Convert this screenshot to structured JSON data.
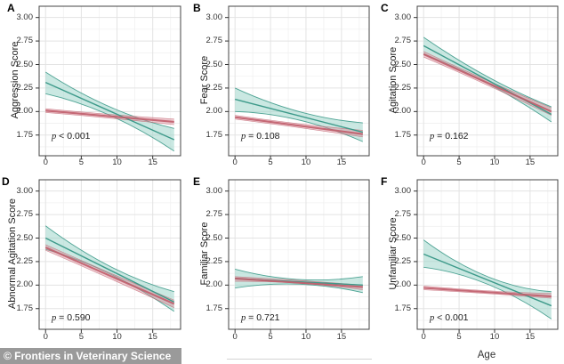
{
  "figure": {
    "credit_banner": "© Frontiers in Veterinary Science",
    "x_axis_title": "Age"
  },
  "colors": {
    "teal_line": "#3d9a8a",
    "teal_band": "#9fd6cb",
    "red_line": "#bf5b69",
    "red_band": "#d98c98",
    "grid_major": "#e3e3e3",
    "grid_minor": "#f1f1f1",
    "panel_border": "#454545",
    "tick": "#333333",
    "banner_bg": "#9a9a9a",
    "banner_text": "#ffffff"
  },
  "axes": {
    "y_tick_labels": [
      "3.00",
      "2.75",
      "2.50",
      "2.25",
      "2.00",
      "1.75"
    ],
    "y_tick_values": [
      3.0,
      2.75,
      2.5,
      2.25,
      2.0,
      1.75
    ],
    "x_tick_labels": [
      "0",
      "5",
      "10",
      "15"
    ],
    "x_tick_values": [
      0,
      5,
      10,
      15
    ],
    "x_minor_values": [
      2.5,
      7.5,
      12.5,
      17.5
    ],
    "y_minor_values": [
      1.625,
      1.875,
      2.125,
      2.375,
      2.625,
      2.875
    ],
    "x_domain": [
      -0.9,
      18.9
    ],
    "y_domain": [
      1.53,
      3.12
    ]
  },
  "chart_data": [
    {
      "type": "line",
      "panel": "A",
      "ylabel": "Aggression Score",
      "p_value": "p < 0.001",
      "x": [
        0,
        9,
        18
      ],
      "series": [
        {
          "name": "teal_group",
          "line": [
            2.31,
            1.7
          ],
          "upper": [
            2.42,
            2.05,
            1.82
          ],
          "lower": [
            2.19,
            1.96,
            1.58
          ]
        },
        {
          "name": "red_group",
          "line": [
            2.01,
            1.89
          ],
          "upper": [
            2.03,
            1.97,
            1.92
          ],
          "lower": [
            1.99,
            1.93,
            1.86
          ]
        }
      ]
    },
    {
      "type": "line",
      "panel": "B",
      "ylabel": "Fear Score",
      "p_value": "p = 0.108",
      "x": [
        0,
        9,
        18
      ],
      "series": [
        {
          "name": "teal_group",
          "line": [
            2.13,
            1.78
          ],
          "upper": [
            2.25,
            2.0,
            1.88
          ],
          "lower": [
            2.0,
            1.91,
            1.68
          ]
        },
        {
          "name": "red_group",
          "line": [
            1.94,
            1.76
          ],
          "upper": [
            1.96,
            1.87,
            1.8
          ],
          "lower": [
            1.92,
            1.83,
            1.73
          ]
        }
      ]
    },
    {
      "type": "line",
      "panel": "C",
      "ylabel": "Agitation Score",
      "p_value": "p = 0.162",
      "x": [
        0,
        9,
        18
      ],
      "series": [
        {
          "name": "teal_group",
          "line": [
            2.7,
            1.97
          ],
          "upper": [
            2.79,
            2.37,
            2.05
          ],
          "lower": [
            2.61,
            2.3,
            1.89
          ]
        },
        {
          "name": "red_group",
          "line": [
            2.61,
            2.0
          ],
          "upper": [
            2.64,
            2.33,
            2.04
          ],
          "lower": [
            2.58,
            2.28,
            1.96
          ]
        }
      ]
    },
    {
      "type": "line",
      "panel": "D",
      "ylabel": "Abnormal Agitation Score",
      "p_value": "p = 0.590",
      "x": [
        0,
        9,
        18
      ],
      "series": [
        {
          "name": "teal_group",
          "line": [
            2.5,
            1.82
          ],
          "upper": [
            2.63,
            2.2,
            1.93
          ],
          "lower": [
            2.38,
            2.12,
            1.72
          ]
        },
        {
          "name": "red_group",
          "line": [
            2.4,
            1.8
          ],
          "upper": [
            2.43,
            2.13,
            1.84
          ],
          "lower": [
            2.37,
            2.07,
            1.76
          ]
        }
      ]
    },
    {
      "type": "line",
      "panel": "E",
      "ylabel": "Familiar Score",
      "p_value": "p = 0.721",
      "x": [
        0,
        9,
        18
      ],
      "series": [
        {
          "name": "teal_group",
          "line": [
            2.07,
            2.0
          ],
          "upper": [
            2.17,
            2.06,
            2.09
          ],
          "lower": [
            1.97,
            2.01,
            1.92
          ]
        },
        {
          "name": "red_group",
          "line": [
            2.07,
            1.98
          ],
          "upper": [
            2.09,
            2.05,
            2.0
          ],
          "lower": [
            2.04,
            2.02,
            1.95
          ]
        }
      ]
    },
    {
      "type": "line",
      "panel": "F",
      "ylabel": "Unfamiliar Score",
      "p_value": "p < 0.001",
      "x": [
        0,
        9,
        18
      ],
      "series": [
        {
          "name": "teal_group",
          "line": [
            2.33,
            1.78
          ],
          "upper": [
            2.48,
            2.09,
            1.93
          ],
          "lower": [
            2.19,
            2.01,
            1.64
          ]
        },
        {
          "name": "red_group",
          "line": [
            1.97,
            1.88
          ],
          "upper": [
            1.99,
            1.94,
            1.91
          ],
          "lower": [
            1.95,
            1.91,
            1.86
          ]
        }
      ]
    }
  ]
}
